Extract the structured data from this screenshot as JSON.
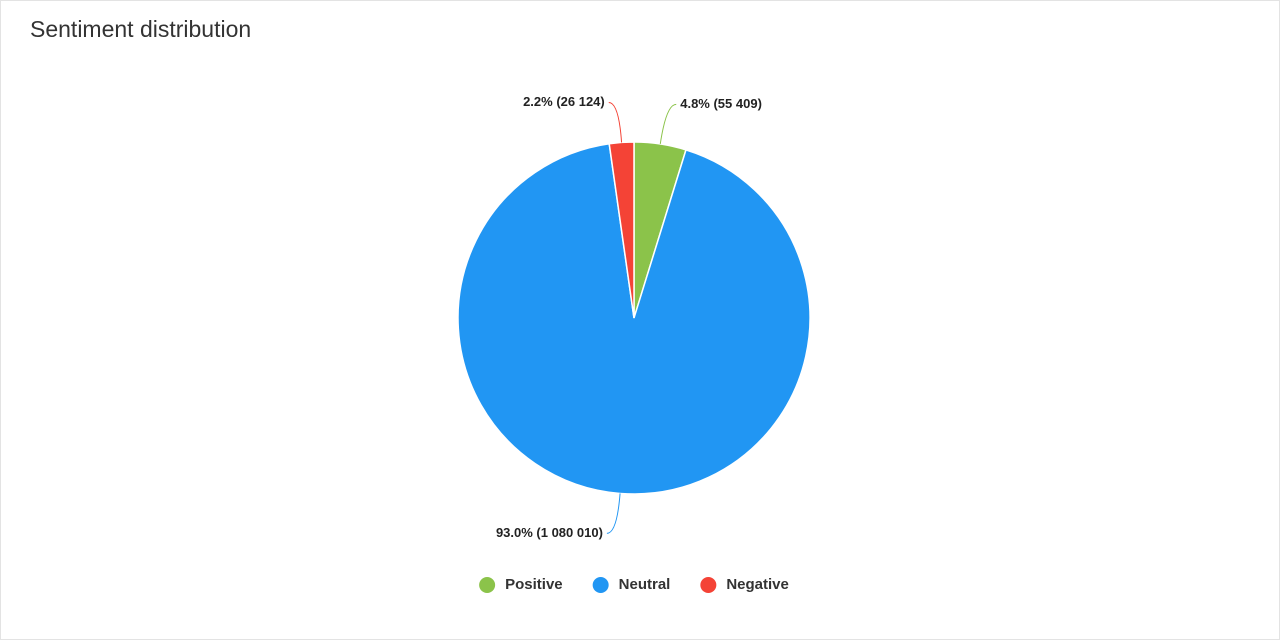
{
  "chart_data": {
    "type": "pie",
    "title": "Sentiment distribution",
    "categories": [
      "Positive",
      "Neutral",
      "Negative"
    ],
    "values": [
      55409,
      1080010,
      26124
    ],
    "value_labels": [
      "4.8% (55 409)",
      "93.0% (1 080 010)",
      "2.2% (26 124)"
    ],
    "colors": [
      "#8bc34a",
      "#2196f3",
      "#f44336"
    ],
    "legend": "bottom"
  }
}
